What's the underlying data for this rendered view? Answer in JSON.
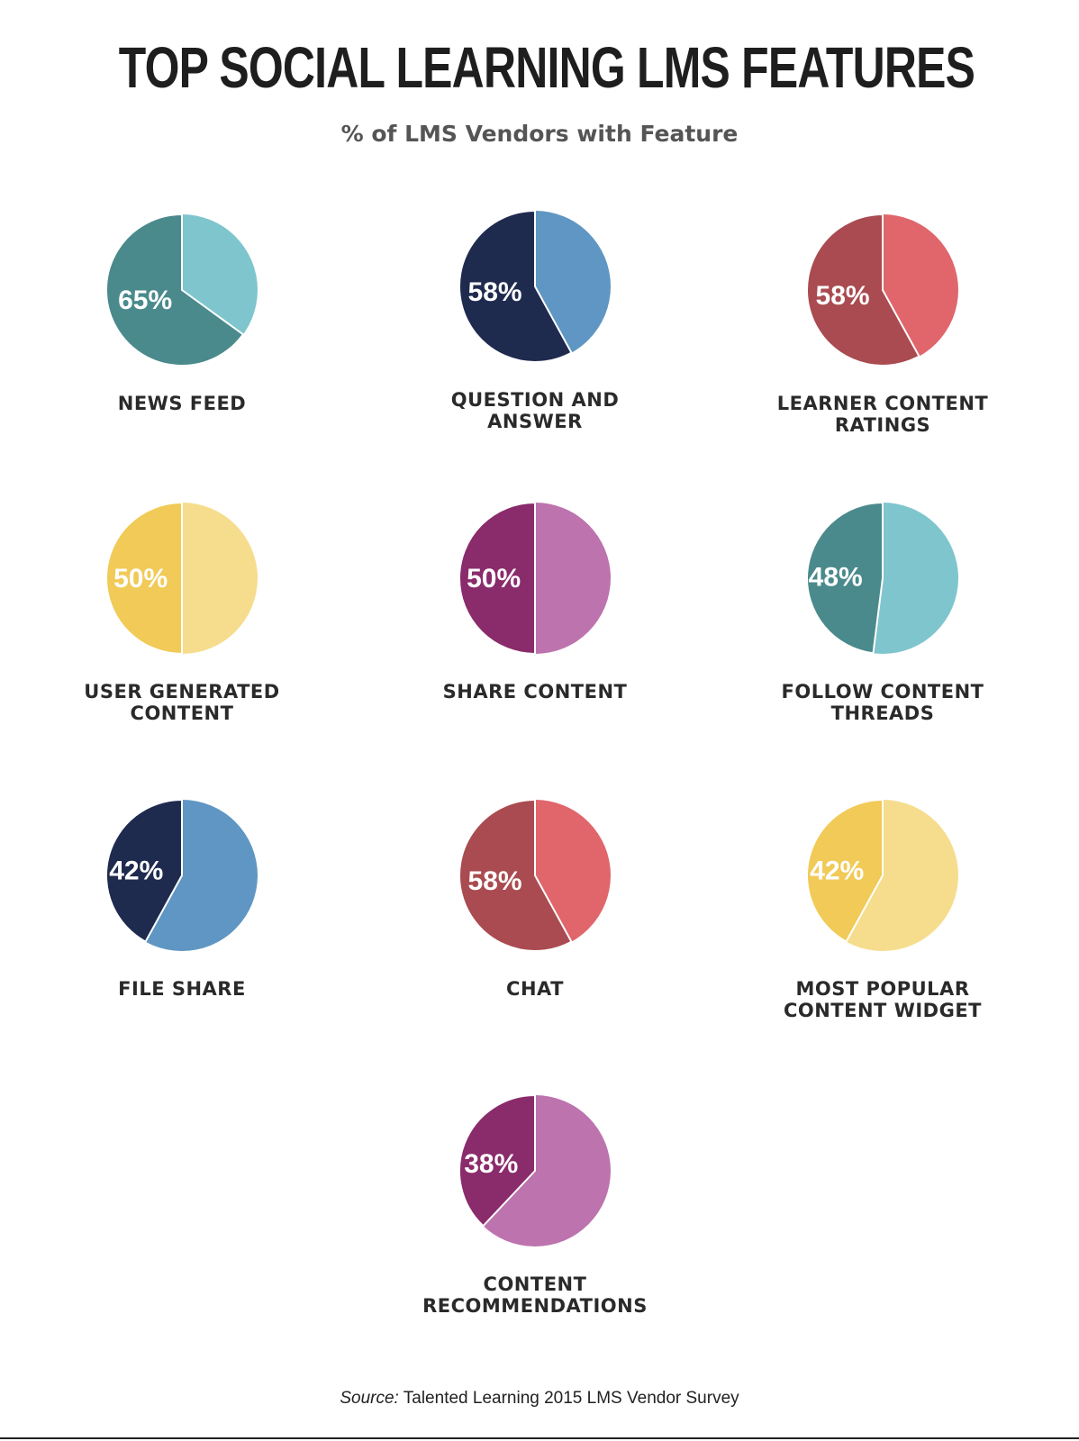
{
  "header": {
    "title": "TOP SOCIAL LEARNING LMS FEATURES",
    "subtitle": "% of LMS Vendors with Feature"
  },
  "footer": {
    "source_label": "Source:",
    "source_text": "Talented Learning 2015 LMS Vendor Survey"
  },
  "chart_data": [
    {
      "type": "pie",
      "label": "NEWS FEED",
      "value": 65,
      "value_label": "65%",
      "colors": {
        "primary": "#4a8a8c",
        "rest": "#7fc5cd"
      }
    },
    {
      "type": "pie",
      "label": "QUESTION AND\nANSWER",
      "value": 58,
      "value_label": "58%",
      "colors": {
        "primary": "#1f2a4f",
        "rest": "#5f96c3"
      }
    },
    {
      "type": "pie",
      "label": "LEARNER CONTENT\nRATINGS",
      "value": 58,
      "value_label": "58%",
      "colors": {
        "primary": "#a94b50",
        "rest": "#e0666c"
      }
    },
    {
      "type": "pie",
      "label": "USER GENERATED\nCONTENT",
      "value": 50,
      "value_label": "50%",
      "colors": {
        "primary": "#f1ca57",
        "rest": "#f6dd8d"
      }
    },
    {
      "type": "pie",
      "label": "SHARE CONTENT",
      "value": 50,
      "value_label": "50%",
      "colors": {
        "primary": "#8a2b6b",
        "rest": "#bd73ad"
      }
    },
    {
      "type": "pie",
      "label": "FOLLOW CONTENT\nTHREADS",
      "value": 48,
      "value_label": "48%",
      "colors": {
        "primary": "#4a8a8c",
        "rest": "#7fc5cd"
      }
    },
    {
      "type": "pie",
      "label": "FILE SHARE",
      "value": 42,
      "value_label": "42%",
      "colors": {
        "primary": "#1f2a4f",
        "rest": "#5f96c3"
      }
    },
    {
      "type": "pie",
      "label": "CHAT",
      "value": 58,
      "value_label": "58%",
      "colors": {
        "primary": "#a94b50",
        "rest": "#e0666c"
      }
    },
    {
      "type": "pie",
      "label": "MOST POPULAR\nCONTENT WIDGET",
      "value": 42,
      "value_label": "42%",
      "colors": {
        "primary": "#f1ca57",
        "rest": "#f6dd8d"
      }
    },
    {
      "type": "pie",
      "label": "CONTENT\nRECOMMENDATIONS",
      "value": 38,
      "value_label": "38%",
      "colors": {
        "primary": "#8a2b6b",
        "rest": "#bd73ad"
      }
    }
  ]
}
